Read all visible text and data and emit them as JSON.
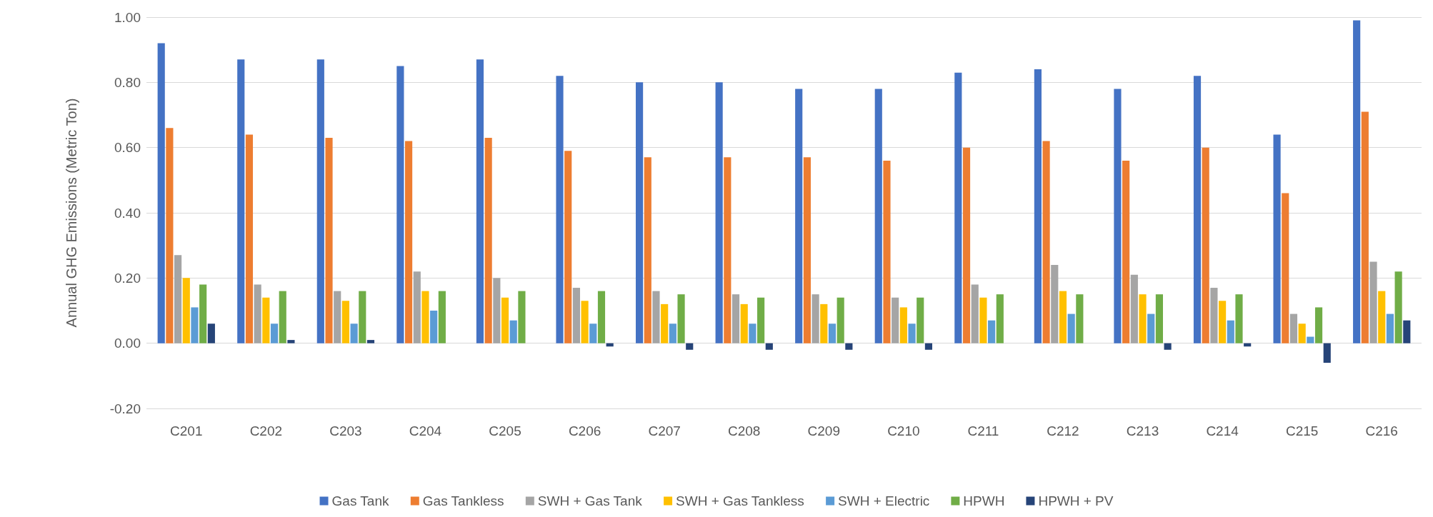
{
  "chart_data": {
    "type": "bar",
    "ylabel": "Annual GHG Emissions (Metric Ton)",
    "categories": [
      "C201",
      "C202",
      "C203",
      "C204",
      "C205",
      "C206",
      "C207",
      "C208",
      "C209",
      "C210",
      "C211",
      "C212",
      "C213",
      "C214",
      "C215",
      "C216"
    ],
    "series": [
      {
        "name": "Gas Tank",
        "color": "#4472c4",
        "values": [
          0.92,
          0.87,
          0.87,
          0.85,
          0.87,
          0.82,
          0.8,
          0.8,
          0.78,
          0.78,
          0.83,
          0.84,
          0.78,
          0.82,
          0.64,
          0.99
        ]
      },
      {
        "name": "Gas Tankless",
        "color": "#ed7d31",
        "values": [
          0.66,
          0.64,
          0.63,
          0.62,
          0.63,
          0.59,
          0.57,
          0.57,
          0.57,
          0.56,
          0.6,
          0.62,
          0.56,
          0.6,
          0.46,
          0.71
        ]
      },
      {
        "name": "SWH + Gas Tank",
        "color": "#a5a5a5",
        "values": [
          0.27,
          0.18,
          0.16,
          0.22,
          0.2,
          0.17,
          0.16,
          0.15,
          0.15,
          0.14,
          0.18,
          0.24,
          0.21,
          0.17,
          0.09,
          0.25
        ]
      },
      {
        "name": "SWH + Gas Tankless",
        "color": "#ffc000",
        "values": [
          0.2,
          0.14,
          0.13,
          0.16,
          0.14,
          0.13,
          0.12,
          0.12,
          0.12,
          0.11,
          0.14,
          0.16,
          0.15,
          0.13,
          0.06,
          0.16
        ]
      },
      {
        "name": "SWH + Electric",
        "color": "#5b9bd5",
        "values": [
          0.11,
          0.06,
          0.06,
          0.1,
          0.07,
          0.06,
          0.06,
          0.06,
          0.06,
          0.06,
          0.07,
          0.09,
          0.09,
          0.07,
          0.02,
          0.09
        ]
      },
      {
        "name": "HPWH",
        "color": "#70ad47",
        "values": [
          0.18,
          0.16,
          0.16,
          0.16,
          0.16,
          0.16,
          0.15,
          0.14,
          0.14,
          0.14,
          0.15,
          0.15,
          0.15,
          0.15,
          0.11,
          0.22
        ]
      },
      {
        "name": "HPWH + PV",
        "color": "#264478",
        "values": [
          0.06,
          0.01,
          0.01,
          0.0,
          0.0,
          -0.01,
          -0.02,
          -0.02,
          -0.02,
          -0.02,
          0.0,
          0.0,
          -0.02,
          -0.01,
          -0.06,
          0.07
        ]
      }
    ],
    "ylim": [
      -0.2,
      1.0
    ],
    "yticks": [
      {
        "value": -0.2,
        "label": "-0.20"
      },
      {
        "value": 0,
        "label": "0.00"
      },
      {
        "value": 0.2,
        "label": "0.20"
      },
      {
        "value": 0.4,
        "label": "0.40"
      },
      {
        "value": 0.6,
        "label": "0.60"
      },
      {
        "value": 0.8,
        "label": "0.80"
      },
      {
        "value": 1.0,
        "label": "1.00"
      }
    ],
    "grid": "y",
    "legend": "bottom"
  }
}
